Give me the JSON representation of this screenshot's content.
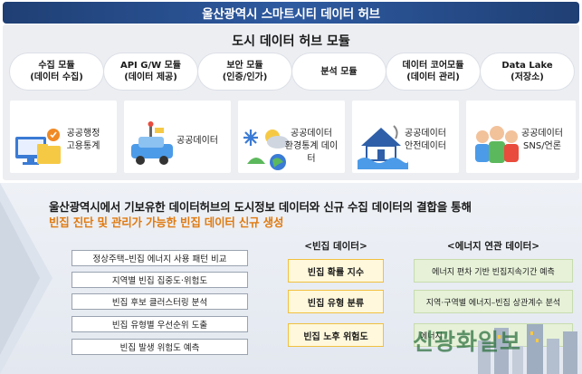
{
  "header": {
    "title": "울산광역시 스마트시티 데이터 허브"
  },
  "hub": {
    "title": "도시 데이터 허브 모듈",
    "modules": [
      {
        "line1": "수집 모듈",
        "line2": "(데이터 수집)"
      },
      {
        "line1": "API G/W 모듈",
        "line2": "(데이터 제공)"
      },
      {
        "line1": "보안 모듈",
        "line2": "(인증/인가)"
      },
      {
        "line1": "분석 모듈",
        "line2": ""
      },
      {
        "line1": "데이터 코어모듈",
        "line2": "(데이터 관리)"
      },
      {
        "line1": "Data Lake",
        "line2": "(저장소)"
      }
    ],
    "sources": [
      {
        "line1": "공공행정",
        "line2": "고용통계",
        "icon": "admin-stats-icon"
      },
      {
        "line1": "공공데이터",
        "line2": "",
        "icon": "vehicle-icon"
      },
      {
        "line1": "공공데이터",
        "line2": "환경통계 데이터",
        "icon": "weather-icon"
      },
      {
        "line1": "공공데이터",
        "line2": "안전데이터",
        "icon": "flood-house-icon"
      },
      {
        "line1": "공공데이터",
        "line2": "SNS/언론",
        "icon": "people-icon"
      }
    ]
  },
  "summary": {
    "line1": "울산광역시에서 기보유한 데이터허브의 도시정보 데이터와 신규 수집 데이터의 결합을 통해",
    "line2": "빈집 진단 및 관리가 가능한 빈집 데이터 신규 생성"
  },
  "analyses": [
    "정상주택–빈집 에너지 사용 패턴 비교",
    "지역별 빈집 집중도·위험도",
    "빈집 후보 클러스터링 분석",
    "빈집 유형별 우선순위 도출",
    "빈집 발생 위험도 예측"
  ],
  "vacant": {
    "header": "<빈집 데이터>",
    "items": [
      "빈집 확률 지수",
      "빈집 유형 분류",
      "빈집 노후 위험도"
    ]
  },
  "energy": {
    "header": "<에너지 연관 데이터>",
    "items": [
      "에너지 편차 기반 빈집지속기간 예측",
      "지역·구역별 에너지–빈집 상관계수 분석",
      "에너지 "
    ]
  },
  "watermark": "신광화일보",
  "colors": {
    "accent": "#e07a10",
    "title_bg": "#2e5aa0",
    "vacant_border": "#f0c040",
    "energy_bg": "#e6f1d8"
  }
}
